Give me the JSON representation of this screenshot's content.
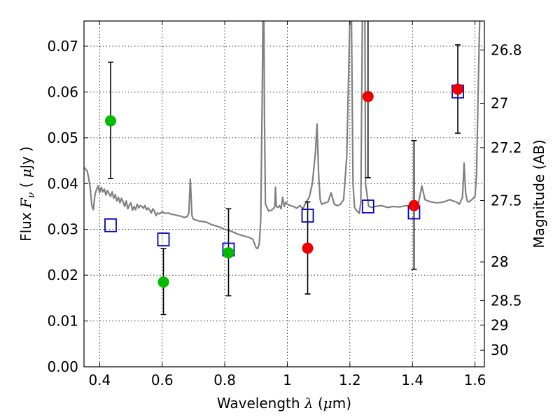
{
  "chart_data": {
    "type": "scatter",
    "xlabel": {
      "text": "Wavelength",
      "math": "λ",
      "unit_open": "(",
      "unit_mu": "μ",
      "unit_rest": "m)"
    },
    "ylabel": {
      "text": "Flux",
      "math": "F",
      "math_sub": "ν",
      "unit_open": "(",
      "unit_mu": "μ",
      "unit_rest": "Jy )"
    },
    "y2label": "Magnitude (AB)",
    "xlim": [
      0.35,
      1.63
    ],
    "ylim": [
      0.0,
      0.0755
    ],
    "grid": true,
    "x_ticks": [
      {
        "value": 0.4,
        "label": "0.4"
      },
      {
        "value": 0.6,
        "label": "0.6"
      },
      {
        "value": 0.8,
        "label": "0.8"
      },
      {
        "value": 1.0,
        "label": "1"
      },
      {
        "value": 1.2,
        "label": "1.2"
      },
      {
        "value": 1.4,
        "label": "1.4"
      },
      {
        "value": 1.6,
        "label": "1.6"
      }
    ],
    "y_ticks": [
      {
        "value": 0.0,
        "label": "0.00"
      },
      {
        "value": 0.01,
        "label": "0.01"
      },
      {
        "value": 0.02,
        "label": "0.02"
      },
      {
        "value": 0.03,
        "label": "0.03"
      },
      {
        "value": 0.04,
        "label": "0.04"
      },
      {
        "value": 0.05,
        "label": "0.05"
      },
      {
        "value": 0.06,
        "label": "0.06"
      },
      {
        "value": 0.07,
        "label": "0.07"
      }
    ],
    "y2_ticks": [
      {
        "value": 26.8,
        "label": "26.8"
      },
      {
        "value": 27.0,
        "label": "27"
      },
      {
        "value": 27.2,
        "label": "27.2"
      },
      {
        "value": 27.5,
        "label": "27.5"
      },
      {
        "value": 28.0,
        "label": "28"
      },
      {
        "value": 28.5,
        "label": "28.5"
      },
      {
        "value": 29.0,
        "label": "29"
      },
      {
        "value": 30.0,
        "label": "30"
      }
    ],
    "series": [
      {
        "kind": "line",
        "color": "#808080",
        "points": [
          [
            0.35,
            0.0435
          ],
          [
            0.36,
            0.0428
          ],
          [
            0.365,
            0.0412
          ],
          [
            0.37,
            0.039
          ],
          [
            0.375,
            0.0352
          ],
          [
            0.38,
            0.0343
          ],
          [
            0.385,
            0.0375
          ],
          [
            0.39,
            0.0387
          ],
          [
            0.395,
            0.0395
          ],
          [
            0.4,
            0.038
          ],
          [
            0.405,
            0.0392
          ],
          [
            0.41,
            0.0382
          ],
          [
            0.415,
            0.0388
          ],
          [
            0.42,
            0.0375
          ],
          [
            0.425,
            0.0385
          ],
          [
            0.43,
            0.0378
          ],
          [
            0.435,
            0.0372
          ],
          [
            0.44,
            0.0382
          ],
          [
            0.445,
            0.0368
          ],
          [
            0.45,
            0.0376
          ],
          [
            0.455,
            0.0362
          ],
          [
            0.46,
            0.037
          ],
          [
            0.465,
            0.0358
          ],
          [
            0.47,
            0.0368
          ],
          [
            0.475,
            0.036
          ],
          [
            0.48,
            0.035
          ],
          [
            0.485,
            0.0362
          ],
          [
            0.49,
            0.0345
          ],
          [
            0.495,
            0.0353
          ],
          [
            0.5,
            0.0358
          ],
          [
            0.505,
            0.0342
          ],
          [
            0.51,
            0.035
          ],
          [
            0.515,
            0.0343
          ],
          [
            0.52,
            0.0355
          ],
          [
            0.525,
            0.0347
          ],
          [
            0.53,
            0.0352
          ],
          [
            0.535,
            0.035
          ],
          [
            0.54,
            0.0346
          ],
          [
            0.545,
            0.0352
          ],
          [
            0.55,
            0.0343
          ],
          [
            0.555,
            0.0347
          ],
          [
            0.56,
            0.0342
          ],
          [
            0.565,
            0.0336
          ],
          [
            0.57,
            0.0345
          ],
          [
            0.575,
            0.034
          ],
          [
            0.58,
            0.033
          ],
          [
            0.585,
            0.0336
          ],
          [
            0.59,
            0.0334
          ],
          [
            0.6,
            0.0338
          ],
          [
            0.61,
            0.0335
          ],
          [
            0.62,
            0.0336
          ],
          [
            0.63,
            0.0333
          ],
          [
            0.64,
            0.0332
          ],
          [
            0.65,
            0.033
          ],
          [
            0.66,
            0.0329
          ],
          [
            0.67,
            0.0326
          ],
          [
            0.68,
            0.0328
          ],
          [
            0.685,
            0.0335
          ],
          [
            0.69,
            0.041
          ],
          [
            0.695,
            0.033
          ],
          [
            0.7,
            0.0322
          ],
          [
            0.72,
            0.0318
          ],
          [
            0.74,
            0.0316
          ],
          [
            0.76,
            0.031
          ],
          [
            0.78,
            0.0306
          ],
          [
            0.8,
            0.03
          ],
          [
            0.82,
            0.0296
          ],
          [
            0.84,
            0.029
          ],
          [
            0.86,
            0.0286
          ],
          [
            0.88,
            0.0282
          ],
          [
            0.89,
            0.0278
          ],
          [
            0.9,
            0.026
          ],
          [
            0.905,
            0.0258
          ],
          [
            0.91,
            0.0268
          ],
          [
            0.915,
            0.032
          ],
          [
            0.92,
            0.06
          ],
          [
            0.922,
            0.076
          ],
          [
            0.925,
            0.076
          ],
          [
            0.927,
            0.055
          ],
          [
            0.93,
            0.0355
          ],
          [
            0.94,
            0.034
          ],
          [
            0.95,
            0.0342
          ],
          [
            0.955,
            0.0345
          ],
          [
            0.96,
            0.035
          ],
          [
            0.962,
            0.0392
          ],
          [
            0.965,
            0.035
          ],
          [
            0.97,
            0.0348
          ],
          [
            0.975,
            0.0352
          ],
          [
            0.98,
            0.0345
          ],
          [
            0.985,
            0.037
          ],
          [
            0.99,
            0.035
          ],
          [
            0.995,
            0.036
          ],
          [
            1.0,
            0.0355
          ],
          [
            1.01,
            0.0352
          ],
          [
            1.02,
            0.035
          ],
          [
            1.03,
            0.0346
          ],
          [
            1.04,
            0.0352
          ],
          [
            1.05,
            0.0345
          ],
          [
            1.06,
            0.036
          ],
          [
            1.07,
            0.037
          ],
          [
            1.08,
            0.04
          ],
          [
            1.09,
            0.047
          ],
          [
            1.095,
            0.053
          ],
          [
            1.1,
            0.042
          ],
          [
            1.105,
            0.0365
          ],
          [
            1.11,
            0.0355
          ],
          [
            1.12,
            0.0358
          ],
          [
            1.13,
            0.036
          ],
          [
            1.14,
            0.038
          ],
          [
            1.15,
            0.0355
          ],
          [
            1.16,
            0.0352
          ],
          [
            1.17,
            0.0355
          ],
          [
            1.18,
            0.0365
          ],
          [
            1.19,
            0.046
          ],
          [
            1.2,
            0.076
          ],
          [
            1.205,
            0.076
          ],
          [
            1.21,
            0.04
          ],
          [
            1.215,
            0.0348
          ],
          [
            1.22,
            0.0342
          ],
          [
            1.23,
            0.0335
          ],
          [
            1.235,
            0.036
          ],
          [
            1.24,
            0.076
          ],
          [
            1.248,
            0.076
          ],
          [
            1.25,
            0.04
          ],
          [
            1.26,
            0.035
          ],
          [
            1.27,
            0.0348
          ],
          [
            1.28,
            0.035
          ],
          [
            1.3,
            0.0352
          ],
          [
            1.32,
            0.0348
          ],
          [
            1.34,
            0.035
          ],
          [
            1.36,
            0.0349
          ],
          [
            1.38,
            0.0352
          ],
          [
            1.4,
            0.035
          ],
          [
            1.41,
            0.0352
          ],
          [
            1.42,
            0.036
          ],
          [
            1.43,
            0.0395
          ],
          [
            1.44,
            0.0365
          ],
          [
            1.45,
            0.0362
          ],
          [
            1.46,
            0.036
          ],
          [
            1.48,
            0.0358
          ],
          [
            1.5,
            0.036
          ],
          [
            1.52,
            0.0365
          ],
          [
            1.53,
            0.0362
          ],
          [
            1.54,
            0.036
          ],
          [
            1.55,
            0.0355
          ],
          [
            1.56,
            0.037
          ],
          [
            1.565,
            0.0445
          ],
          [
            1.57,
            0.038
          ],
          [
            1.575,
            0.0362
          ],
          [
            1.58,
            0.036
          ],
          [
            1.59,
            0.0365
          ],
          [
            1.6,
            0.0372
          ],
          [
            1.605,
            0.042
          ],
          [
            1.61,
            0.06
          ],
          [
            1.615,
            0.076
          ]
        ]
      },
      {
        "kind": "points",
        "marker": "filled-circle",
        "color": "#00bb00",
        "points": [
          {
            "x": 0.435,
            "y": 0.0537,
            "ylo": 0.0411,
            "yhi": 0.0665
          },
          {
            "x": 0.604,
            "y": 0.0185,
            "ylo": 0.0114,
            "yhi": 0.0258
          },
          {
            "x": 0.812,
            "y": 0.0249,
            "ylo": 0.0155,
            "yhi": 0.0345
          }
        ]
      },
      {
        "kind": "points",
        "marker": "filled-circle",
        "color": "#ee0000",
        "points": [
          {
            "x": 1.065,
            "y": 0.0259,
            "ylo": 0.0159,
            "yhi": 0.036
          },
          {
            "x": 1.258,
            "y": 0.059,
            "ylo": 0.0413,
            "yhi": 0.076
          },
          {
            "x": 1.405,
            "y": 0.0352,
            "ylo": 0.0213,
            "yhi": 0.0494
          },
          {
            "x": 1.545,
            "y": 0.0606,
            "ylo": 0.051,
            "yhi": 0.0703
          }
        ]
      },
      {
        "kind": "points",
        "marker": "open-square",
        "color": "#0000cc",
        "points": [
          {
            "x": 0.435,
            "y": 0.0309
          },
          {
            "x": 0.604,
            "y": 0.0278
          },
          {
            "x": 0.812,
            "y": 0.0256
          },
          {
            "x": 1.065,
            "y": 0.033
          },
          {
            "x": 1.258,
            "y": 0.035
          },
          {
            "x": 1.405,
            "y": 0.0337
          },
          {
            "x": 1.545,
            "y": 0.0601
          }
        ]
      }
    ]
  }
}
